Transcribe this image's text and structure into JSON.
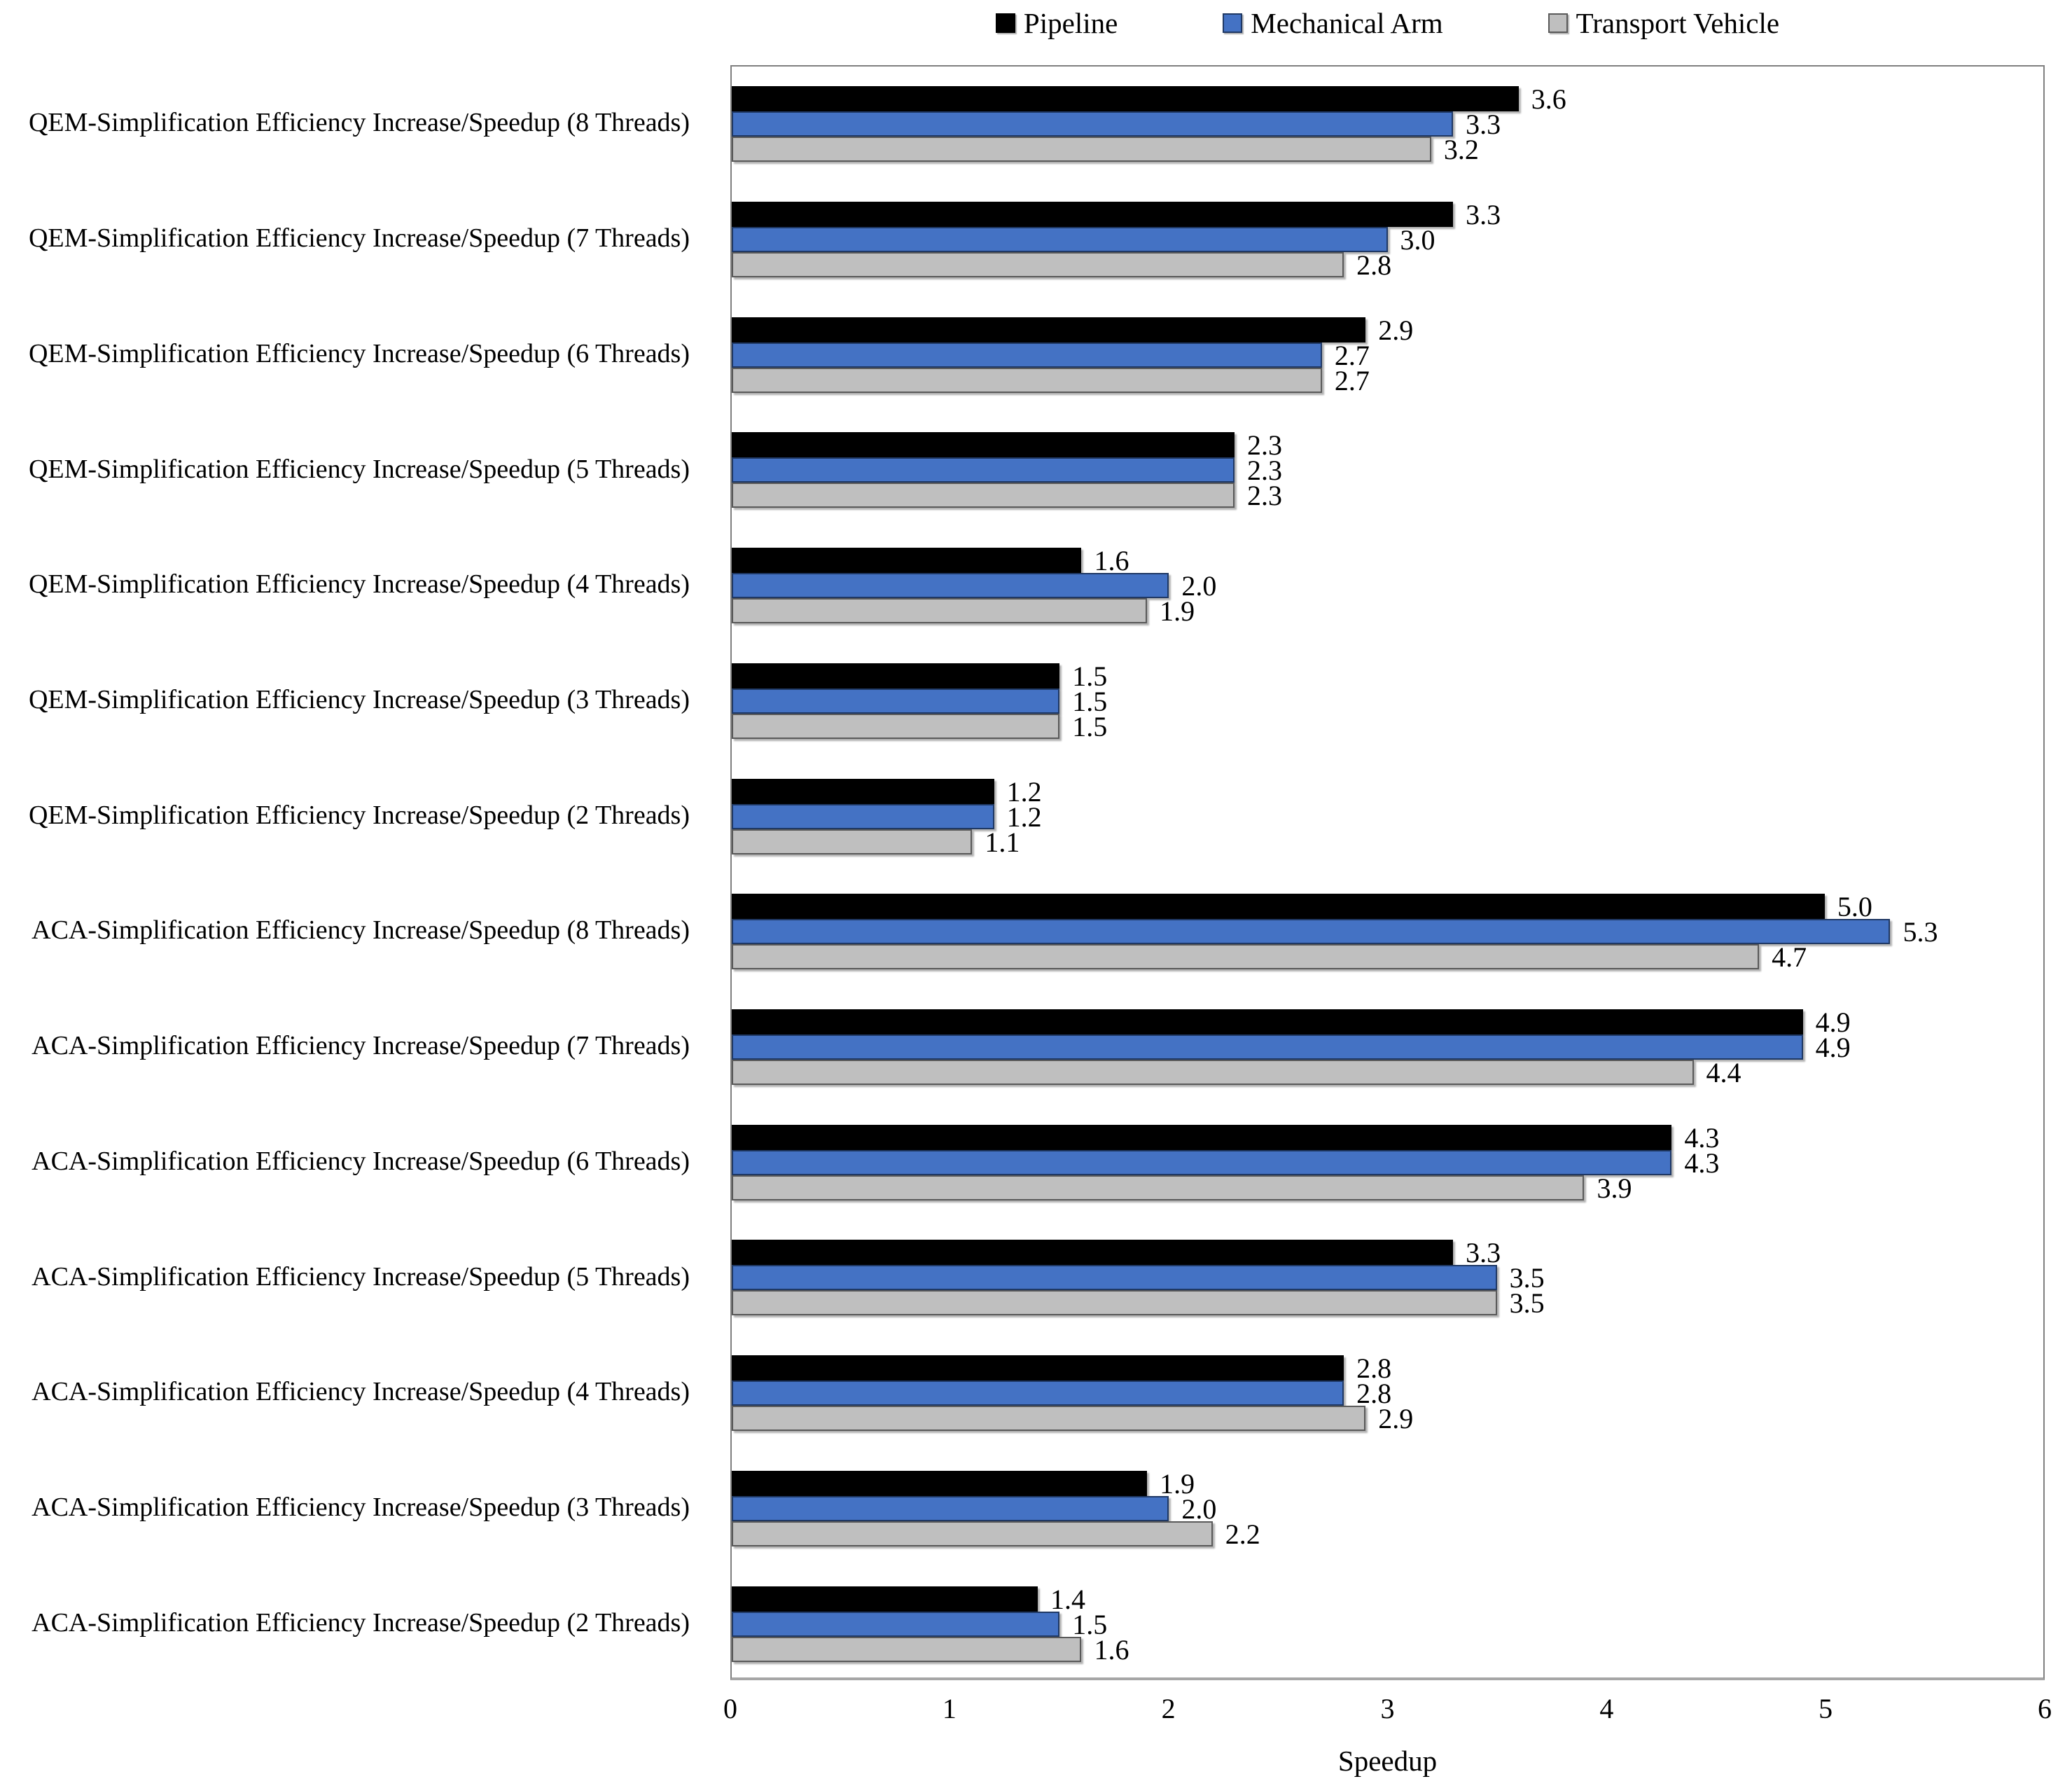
{
  "legend": {
    "position": "top-center",
    "items": [
      {
        "label": "Pipeline",
        "color": "#000000",
        "border": "#000000"
      },
      {
        "label": "Mechanical Arm",
        "color": "#4472c4",
        "border": "#1f3864"
      },
      {
        "label": "Transport Vehicle",
        "color": "#bfbfbf",
        "border": "#595959"
      }
    ]
  },
  "chart_data": {
    "type": "bar",
    "orientation": "horizontal",
    "grid": false,
    "title": "",
    "xlabel": "Speedup",
    "ylabel": "",
    "xlim": [
      0,
      6
    ],
    "xticks": [
      0,
      1,
      2,
      3,
      4,
      5,
      6
    ],
    "value_label_format": "one-decimal",
    "categories": [
      "QEM-Simplification Efficiency Increase/Speedup (8 Threads)",
      "QEM-Simplification Efficiency Increase/Speedup (7 Threads)",
      "QEM-Simplification Efficiency Increase/Speedup (6 Threads)",
      "QEM-Simplification Efficiency Increase/Speedup (5 Threads)",
      "QEM-Simplification Efficiency Increase/Speedup (4 Threads)",
      "QEM-Simplification Efficiency Increase/Speedup (3 Threads)",
      "QEM-Simplification Efficiency Increase/Speedup (2 Threads)",
      "ACA-Simplification Efficiency Increase/Speedup (8 Threads)",
      "ACA-Simplification Efficiency Increase/Speedup (7 Threads)",
      "ACA-Simplification Efficiency Increase/Speedup (6 Threads)",
      "ACA-Simplification Efficiency Increase/Speedup (5 Threads)",
      "ACA-Simplification Efficiency Increase/Speedup (4 Threads)",
      "ACA-Simplification Efficiency Increase/Speedup (3 Threads)",
      "ACA-Simplification Efficiency Increase/Speedup (2 Threads)"
    ],
    "series": [
      {
        "name": "Pipeline",
        "color": "#000000",
        "border": "#000000",
        "values": [
          3.6,
          3.3,
          2.9,
          2.3,
          1.6,
          1.5,
          1.2,
          5.0,
          4.9,
          4.3,
          3.3,
          2.8,
          1.9,
          1.4
        ]
      },
      {
        "name": "Mechanical Arm",
        "color": "#4472c4",
        "border": "#1f3864",
        "values": [
          3.3,
          3.0,
          2.7,
          2.3,
          2.0,
          1.5,
          1.2,
          5.3,
          4.9,
          4.3,
          3.5,
          2.8,
          2.0,
          1.5
        ]
      },
      {
        "name": "Transport Vehicle",
        "color": "#bfbfbf",
        "border": "#595959",
        "values": [
          3.2,
          2.8,
          2.7,
          2.3,
          1.9,
          1.5,
          1.1,
          4.7,
          4.4,
          3.9,
          3.5,
          2.9,
          2.2,
          1.6
        ]
      }
    ]
  }
}
